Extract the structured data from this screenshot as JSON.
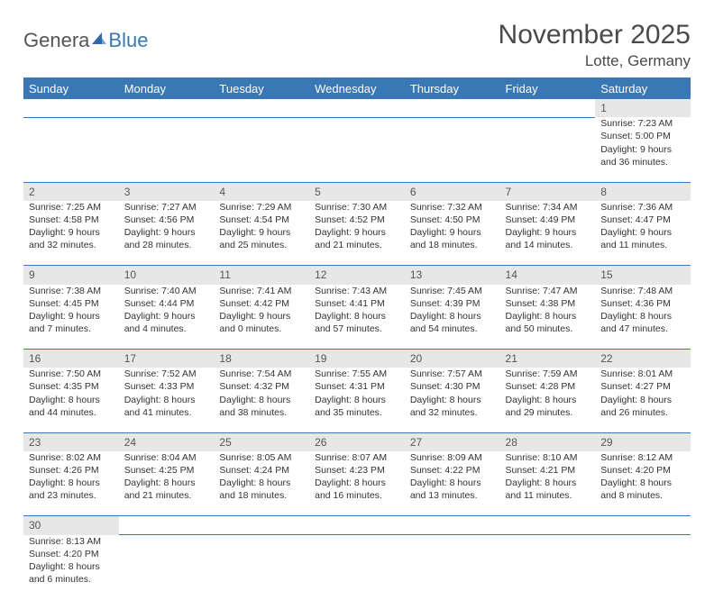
{
  "logo": {
    "part1": "Genera",
    "part2": "Blue"
  },
  "title": "November 2025",
  "location": "Lotte, Germany",
  "day_headers": [
    "Sunday",
    "Monday",
    "Tuesday",
    "Wednesday",
    "Thursday",
    "Friday",
    "Saturday"
  ],
  "colors": {
    "header_bg": "#3a78b5",
    "header_text": "#ffffff",
    "daynum_bg": "#e7e7e7",
    "border": "#3a78b5",
    "text": "#333333",
    "title_text": "#4a4a4a"
  },
  "weeks": [
    [
      null,
      null,
      null,
      null,
      null,
      null,
      {
        "n": "1",
        "sunrise": "Sunrise: 7:23 AM",
        "sunset": "Sunset: 5:00 PM",
        "day1": "Daylight: 9 hours",
        "day2": "and 36 minutes."
      }
    ],
    [
      {
        "n": "2",
        "sunrise": "Sunrise: 7:25 AM",
        "sunset": "Sunset: 4:58 PM",
        "day1": "Daylight: 9 hours",
        "day2": "and 32 minutes."
      },
      {
        "n": "3",
        "sunrise": "Sunrise: 7:27 AM",
        "sunset": "Sunset: 4:56 PM",
        "day1": "Daylight: 9 hours",
        "day2": "and 28 minutes."
      },
      {
        "n": "4",
        "sunrise": "Sunrise: 7:29 AM",
        "sunset": "Sunset: 4:54 PM",
        "day1": "Daylight: 9 hours",
        "day2": "and 25 minutes."
      },
      {
        "n": "5",
        "sunrise": "Sunrise: 7:30 AM",
        "sunset": "Sunset: 4:52 PM",
        "day1": "Daylight: 9 hours",
        "day2": "and 21 minutes."
      },
      {
        "n": "6",
        "sunrise": "Sunrise: 7:32 AM",
        "sunset": "Sunset: 4:50 PM",
        "day1": "Daylight: 9 hours",
        "day2": "and 18 minutes."
      },
      {
        "n": "7",
        "sunrise": "Sunrise: 7:34 AM",
        "sunset": "Sunset: 4:49 PM",
        "day1": "Daylight: 9 hours",
        "day2": "and 14 minutes."
      },
      {
        "n": "8",
        "sunrise": "Sunrise: 7:36 AM",
        "sunset": "Sunset: 4:47 PM",
        "day1": "Daylight: 9 hours",
        "day2": "and 11 minutes."
      }
    ],
    [
      {
        "n": "9",
        "sunrise": "Sunrise: 7:38 AM",
        "sunset": "Sunset: 4:45 PM",
        "day1": "Daylight: 9 hours",
        "day2": "and 7 minutes."
      },
      {
        "n": "10",
        "sunrise": "Sunrise: 7:40 AM",
        "sunset": "Sunset: 4:44 PM",
        "day1": "Daylight: 9 hours",
        "day2": "and 4 minutes."
      },
      {
        "n": "11",
        "sunrise": "Sunrise: 7:41 AM",
        "sunset": "Sunset: 4:42 PM",
        "day1": "Daylight: 9 hours",
        "day2": "and 0 minutes."
      },
      {
        "n": "12",
        "sunrise": "Sunrise: 7:43 AM",
        "sunset": "Sunset: 4:41 PM",
        "day1": "Daylight: 8 hours",
        "day2": "and 57 minutes."
      },
      {
        "n": "13",
        "sunrise": "Sunrise: 7:45 AM",
        "sunset": "Sunset: 4:39 PM",
        "day1": "Daylight: 8 hours",
        "day2": "and 54 minutes."
      },
      {
        "n": "14",
        "sunrise": "Sunrise: 7:47 AM",
        "sunset": "Sunset: 4:38 PM",
        "day1": "Daylight: 8 hours",
        "day2": "and 50 minutes."
      },
      {
        "n": "15",
        "sunrise": "Sunrise: 7:48 AM",
        "sunset": "Sunset: 4:36 PM",
        "day1": "Daylight: 8 hours",
        "day2": "and 47 minutes."
      }
    ],
    [
      {
        "n": "16",
        "sunrise": "Sunrise: 7:50 AM",
        "sunset": "Sunset: 4:35 PM",
        "day1": "Daylight: 8 hours",
        "day2": "and 44 minutes."
      },
      {
        "n": "17",
        "sunrise": "Sunrise: 7:52 AM",
        "sunset": "Sunset: 4:33 PM",
        "day1": "Daylight: 8 hours",
        "day2": "and 41 minutes."
      },
      {
        "n": "18",
        "sunrise": "Sunrise: 7:54 AM",
        "sunset": "Sunset: 4:32 PM",
        "day1": "Daylight: 8 hours",
        "day2": "and 38 minutes."
      },
      {
        "n": "19",
        "sunrise": "Sunrise: 7:55 AM",
        "sunset": "Sunset: 4:31 PM",
        "day1": "Daylight: 8 hours",
        "day2": "and 35 minutes."
      },
      {
        "n": "20",
        "sunrise": "Sunrise: 7:57 AM",
        "sunset": "Sunset: 4:30 PM",
        "day1": "Daylight: 8 hours",
        "day2": "and 32 minutes."
      },
      {
        "n": "21",
        "sunrise": "Sunrise: 7:59 AM",
        "sunset": "Sunset: 4:28 PM",
        "day1": "Daylight: 8 hours",
        "day2": "and 29 minutes."
      },
      {
        "n": "22",
        "sunrise": "Sunrise: 8:01 AM",
        "sunset": "Sunset: 4:27 PM",
        "day1": "Daylight: 8 hours",
        "day2": "and 26 minutes."
      }
    ],
    [
      {
        "n": "23",
        "sunrise": "Sunrise: 8:02 AM",
        "sunset": "Sunset: 4:26 PM",
        "day1": "Daylight: 8 hours",
        "day2": "and 23 minutes."
      },
      {
        "n": "24",
        "sunrise": "Sunrise: 8:04 AM",
        "sunset": "Sunset: 4:25 PM",
        "day1": "Daylight: 8 hours",
        "day2": "and 21 minutes."
      },
      {
        "n": "25",
        "sunrise": "Sunrise: 8:05 AM",
        "sunset": "Sunset: 4:24 PM",
        "day1": "Daylight: 8 hours",
        "day2": "and 18 minutes."
      },
      {
        "n": "26",
        "sunrise": "Sunrise: 8:07 AM",
        "sunset": "Sunset: 4:23 PM",
        "day1": "Daylight: 8 hours",
        "day2": "and 16 minutes."
      },
      {
        "n": "27",
        "sunrise": "Sunrise: 8:09 AM",
        "sunset": "Sunset: 4:22 PM",
        "day1": "Daylight: 8 hours",
        "day2": "and 13 minutes."
      },
      {
        "n": "28",
        "sunrise": "Sunrise: 8:10 AM",
        "sunset": "Sunset: 4:21 PM",
        "day1": "Daylight: 8 hours",
        "day2": "and 11 minutes."
      },
      {
        "n": "29",
        "sunrise": "Sunrise: 8:12 AM",
        "sunset": "Sunset: 4:20 PM",
        "day1": "Daylight: 8 hours",
        "day2": "and 8 minutes."
      }
    ],
    [
      {
        "n": "30",
        "sunrise": "Sunrise: 8:13 AM",
        "sunset": "Sunset: 4:20 PM",
        "day1": "Daylight: 8 hours",
        "day2": "and 6 minutes."
      },
      null,
      null,
      null,
      null,
      null,
      null
    ]
  ]
}
